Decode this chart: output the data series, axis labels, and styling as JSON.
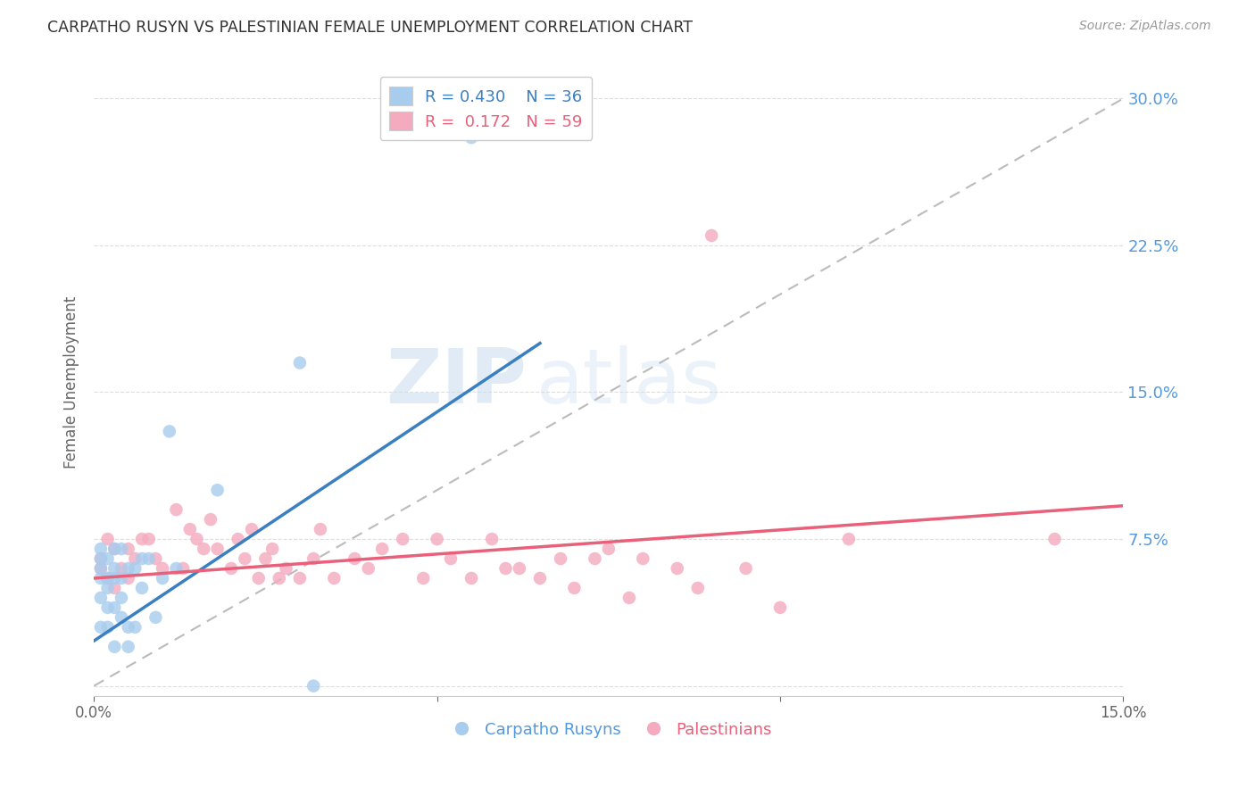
{
  "title": "CARPATHO RUSYN VS PALESTINIAN FEMALE UNEMPLOYMENT CORRELATION CHART",
  "source": "Source: ZipAtlas.com",
  "ylabel": "Female Unemployment",
  "xmin": 0.0,
  "xmax": 0.15,
  "ymin": -0.005,
  "ymax": 0.315,
  "right_yticks": [
    0.0,
    0.075,
    0.15,
    0.225,
    0.3
  ],
  "right_yticklabels": [
    "",
    "7.5%",
    "15.0%",
    "22.5%",
    "30.0%"
  ],
  "legend_r1": "R = 0.430",
  "legend_n1": "N = 36",
  "legend_r2": "R =  0.172",
  "legend_n2": "N = 59",
  "blue_color": "#A8CCEE",
  "pink_color": "#F4AABF",
  "blue_line_color": "#3A7FC1",
  "pink_line_color": "#E8607A",
  "dashed_line_color": "#BBBBBB",
  "watermark_zip": "ZIP",
  "watermark_atlas": "atlas",
  "blue_points_x": [
    0.001,
    0.001,
    0.001,
    0.001,
    0.001,
    0.001,
    0.002,
    0.002,
    0.002,
    0.002,
    0.002,
    0.003,
    0.003,
    0.003,
    0.003,
    0.003,
    0.004,
    0.004,
    0.004,
    0.004,
    0.005,
    0.005,
    0.005,
    0.006,
    0.006,
    0.007,
    0.007,
    0.008,
    0.009,
    0.01,
    0.011,
    0.012,
    0.018,
    0.03,
    0.032,
    0.055
  ],
  "blue_points_y": [
    0.03,
    0.045,
    0.055,
    0.06,
    0.065,
    0.07,
    0.03,
    0.04,
    0.05,
    0.055,
    0.065,
    0.02,
    0.04,
    0.055,
    0.06,
    0.07,
    0.035,
    0.045,
    0.055,
    0.07,
    0.02,
    0.03,
    0.06,
    0.03,
    0.06,
    0.05,
    0.065,
    0.065,
    0.035,
    0.055,
    0.13,
    0.06,
    0.1,
    0.165,
    0.0,
    0.28
  ],
  "pink_points_x": [
    0.001,
    0.001,
    0.002,
    0.002,
    0.003,
    0.003,
    0.004,
    0.005,
    0.005,
    0.006,
    0.007,
    0.008,
    0.009,
    0.01,
    0.012,
    0.013,
    0.014,
    0.015,
    0.016,
    0.017,
    0.018,
    0.02,
    0.021,
    0.022,
    0.023,
    0.024,
    0.025,
    0.026,
    0.027,
    0.028,
    0.03,
    0.032,
    0.033,
    0.035,
    0.038,
    0.04,
    0.042,
    0.045,
    0.048,
    0.05,
    0.052,
    0.055,
    0.058,
    0.06,
    0.062,
    0.065,
    0.068,
    0.07,
    0.073,
    0.075,
    0.078,
    0.08,
    0.085,
    0.088,
    0.09,
    0.095,
    0.1,
    0.11,
    0.14
  ],
  "pink_points_y": [
    0.06,
    0.065,
    0.055,
    0.075,
    0.05,
    0.07,
    0.06,
    0.055,
    0.07,
    0.065,
    0.075,
    0.075,
    0.065,
    0.06,
    0.09,
    0.06,
    0.08,
    0.075,
    0.07,
    0.085,
    0.07,
    0.06,
    0.075,
    0.065,
    0.08,
    0.055,
    0.065,
    0.07,
    0.055,
    0.06,
    0.055,
    0.065,
    0.08,
    0.055,
    0.065,
    0.06,
    0.07,
    0.075,
    0.055,
    0.075,
    0.065,
    0.055,
    0.075,
    0.06,
    0.06,
    0.055,
    0.065,
    0.05,
    0.065,
    0.07,
    0.045,
    0.065,
    0.06,
    0.05,
    0.23,
    0.06,
    0.04,
    0.075,
    0.075
  ],
  "blue_trend_x0": 0.0,
  "blue_trend_y0": 0.023,
  "blue_trend_x1": 0.065,
  "blue_trend_y1": 0.175,
  "pink_trend_x0": 0.0,
  "pink_trend_y0": 0.055,
  "pink_trend_x1": 0.15,
  "pink_trend_y1": 0.092
}
